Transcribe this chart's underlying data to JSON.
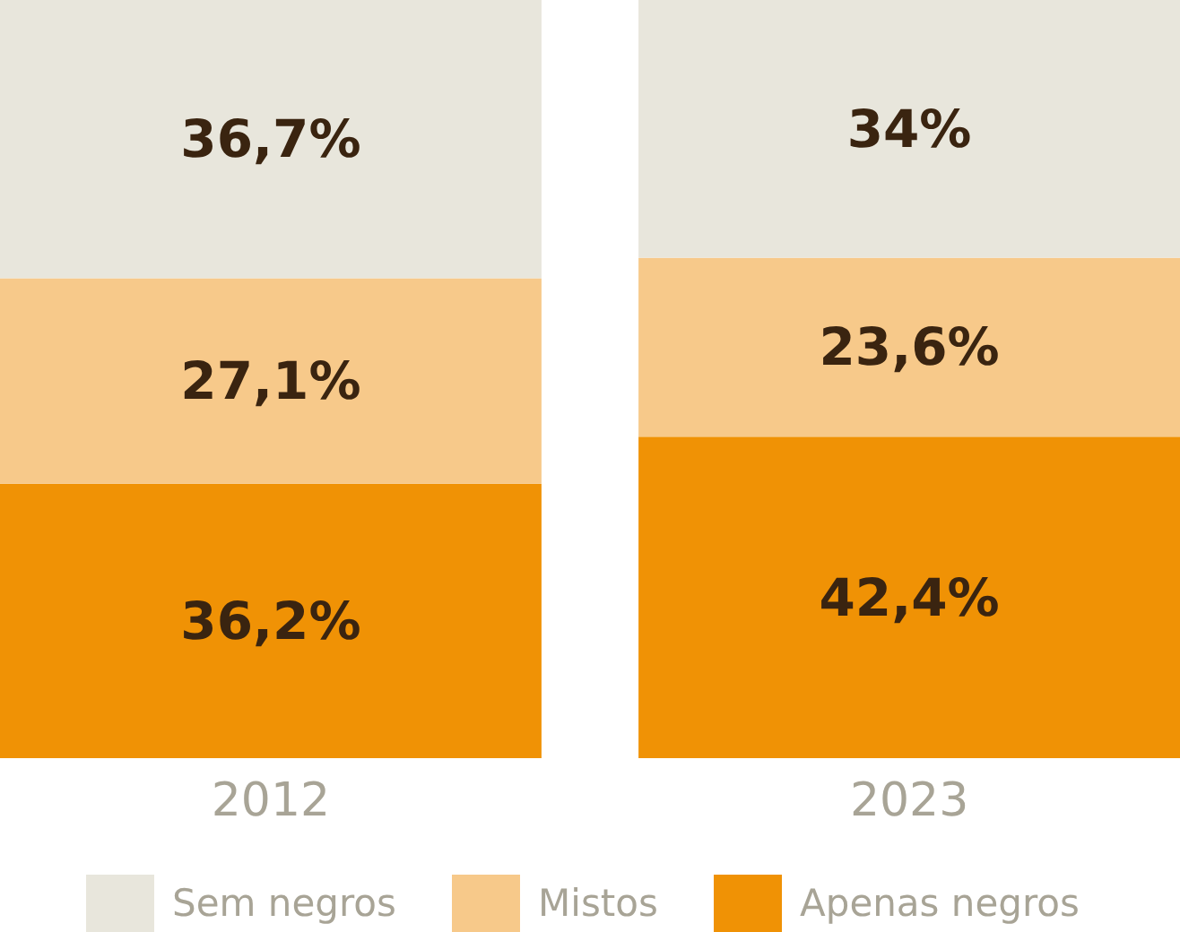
{
  "chart_data": {
    "type": "bar",
    "stacked": true,
    "categories": [
      "2012",
      "2023"
    ],
    "ylim": [
      0,
      100
    ],
    "tick_labels": "x",
    "legend": "bottom",
    "series": [
      {
        "name": "Apenas negros",
        "color": "#f09205",
        "values": [
          36.2,
          42.4
        ],
        "value_labels": [
          "36,2%",
          "42,4%"
        ]
      },
      {
        "name": "Mistos",
        "color": "#f7c98a",
        "values": [
          27.1,
          23.6
        ],
        "value_labels": [
          "27,1%",
          "23,6%"
        ]
      },
      {
        "name": "Sem negros",
        "color": "#e8e6dc",
        "values": [
          36.7,
          34
        ],
        "value_labels": [
          "36,7%",
          "34%"
        ]
      }
    ]
  }
}
